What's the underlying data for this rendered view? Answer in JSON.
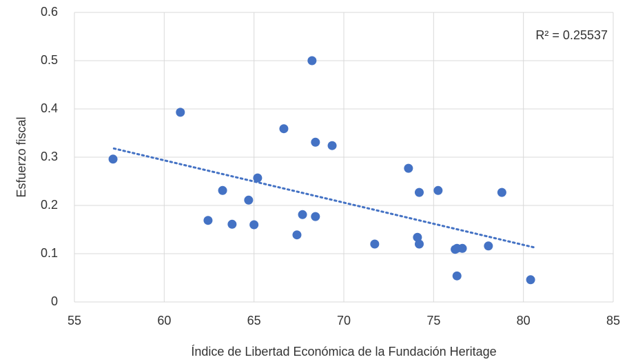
{
  "chart_data": {
    "type": "scatter",
    "x_label": "Índice de Libertad Económica  de la Fundación Heritage",
    "y_label": "Esfuerzo fiscal",
    "annotation": "R² = 0.25537",
    "color": "#4472c4",
    "grid": true,
    "x": [
      57.15,
      60.9,
      63.25,
      62.44,
      63.78,
      64.7,
      65.0,
      65.2,
      66.66,
      67.39,
      67.7,
      68.23,
      68.42,
      68.42,
      69.35,
      71.72,
      73.6,
      74.1,
      74.2,
      74.2,
      75.25,
      76.2,
      76.3,
      76.3,
      76.6,
      78.05,
      78.8,
      80.4
    ],
    "values": [
      0.296,
      0.393,
      0.231,
      0.169,
      0.161,
      0.211,
      0.16,
      0.257,
      0.359,
      0.139,
      0.181,
      0.5,
      0.331,
      0.177,
      0.324,
      0.12,
      0.277,
      0.134,
      0.227,
      0.12,
      0.231,
      0.109,
      0.111,
      0.054,
      0.111,
      0.116,
      0.227,
      0.046
    ],
    "trendline": {
      "x": [
        57.2,
        80.6
      ],
      "values": [
        0.318,
        0.113
      ]
    },
    "xlim": [
      55,
      85
    ],
    "xticks": [
      55,
      60,
      65,
      70,
      75,
      80,
      85
    ],
    "ylim": [
      0,
      0.6
    ],
    "yticks": [
      0,
      0.1,
      0.2,
      0.3,
      0.4,
      0.5,
      0.6
    ]
  }
}
